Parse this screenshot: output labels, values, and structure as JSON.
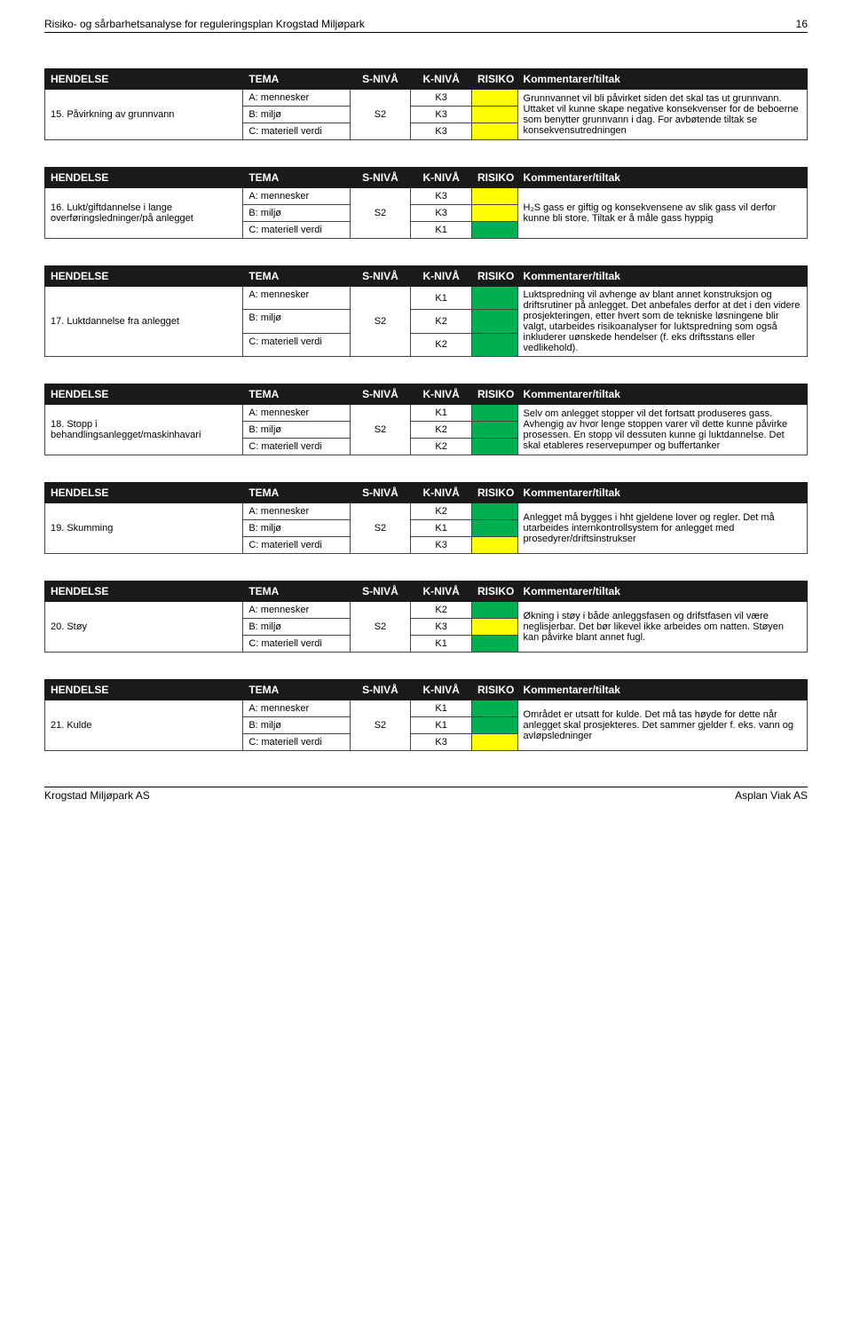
{
  "header": {
    "doc_title": "Risiko- og sårbarhetsanalyse for reguleringsplan Krogstad Miljøpark",
    "page_no": "16"
  },
  "footer": {
    "left": "Krogstad Miljøpark AS",
    "right": "Asplan Viak AS"
  },
  "columns": {
    "event": "HENDELSE",
    "tema": "TEMA",
    "sniva": "S-NIVÅ",
    "kniva": "K-NIVÅ",
    "risiko": "RISIKO",
    "comment": "Kommentarer/tiltak"
  },
  "tema_labels": {
    "a": "A: mennesker",
    "b": "B: miljø",
    "c": "C: materiell verdi"
  },
  "colors": {
    "green": "#00b050",
    "yellow": "#ffff00"
  },
  "events": [
    {
      "label": "15. Påvirkning av grunnvann",
      "sniva": "S2",
      "rows": [
        {
          "k": "K3",
          "color": "yellow"
        },
        {
          "k": "K3",
          "color": "yellow"
        },
        {
          "k": "K3",
          "color": "yellow"
        }
      ],
      "comment": "Grunnvannet vil bli påvirket siden det skal tas ut grunnvann. Uttaket vil kunne skape negative konsekvenser for de beboerne som benytter grunnvann i dag. For avbøtende tiltak se konsekvensutredningen"
    },
    {
      "label": "16. Lukt/giftdannelse i lange overføringsledninger/på anlegget",
      "sniva": "S2",
      "rows": [
        {
          "k": "K3",
          "color": "yellow"
        },
        {
          "k": "K3",
          "color": "yellow"
        },
        {
          "k": "K1",
          "color": "green"
        }
      ],
      "comment": "H₂S gass er giftig og konsekvensene av slik gass vil derfor kunne bli store. Tiltak er å måle gass hyppig"
    },
    {
      "label": "17. Luktdannelse fra anlegget",
      "sniva": "S2",
      "rows": [
        {
          "k": "K1",
          "color": "green"
        },
        {
          "k": "K2",
          "color": "green"
        },
        {
          "k": "K2",
          "color": "green"
        }
      ],
      "comment": "Luktspredning vil avhenge av blant annet konstruksjon og driftsrutiner på anlegget. Det anbefales derfor at det i den videre prosjekteringen, etter hvert som de tekniske løsningene blir valgt, utarbeides risikoanalyser for luktspredning som også inkluderer uønskede hendelser (f. eks driftsstans eller vedlikehold)."
    },
    {
      "label": "18. Stopp i behandlingsanlegget/maskinhavari",
      "sniva": "S2",
      "rows": [
        {
          "k": "K1",
          "color": "green"
        },
        {
          "k": "K2",
          "color": "green"
        },
        {
          "k": "K2",
          "color": "green"
        }
      ],
      "comment": "Selv om anlegget stopper vil det fortsatt produseres gass. Avhengig av hvor lenge stoppen varer vil dette kunne påvirke prosessen. En stopp vil dessuten kunne gi luktdannelse. Det skal etableres reservepumper og buffertanker"
    },
    {
      "label": "19. Skumming",
      "sniva": "S2",
      "rows": [
        {
          "k": "K2",
          "color": "green"
        },
        {
          "k": "K1",
          "color": "green"
        },
        {
          "k": "K3",
          "color": "yellow"
        }
      ],
      "comment": "Anlegget må bygges i hht gjeldene lover og regler. Det må utarbeides internkontrollsystem for anlegget med prosedyrer/driftsinstrukser"
    },
    {
      "label": "20. Støy",
      "sniva": "S2",
      "rows": [
        {
          "k": "K2",
          "color": "green"
        },
        {
          "k": "K3",
          "color": "yellow"
        },
        {
          "k": "K1",
          "color": "green"
        }
      ],
      "comment": "Økning i støy i både anleggsfasen og drifstfasen vil være neglisjerbar. Det bør likevel ikke arbeides om natten. Støyen kan påvirke blant annet fugl."
    },
    {
      "label": "21. Kulde",
      "sniva": "S2",
      "rows": [
        {
          "k": "K1",
          "color": "green"
        },
        {
          "k": "K1",
          "color": "green"
        },
        {
          "k": "K3",
          "color": "yellow"
        }
      ],
      "comment": "Området er utsatt for kulde. Det må tas høyde for dette når anlegget skal prosjekteres. Det sammer gjelder f. eks. vann og avløpsledninger"
    }
  ]
}
